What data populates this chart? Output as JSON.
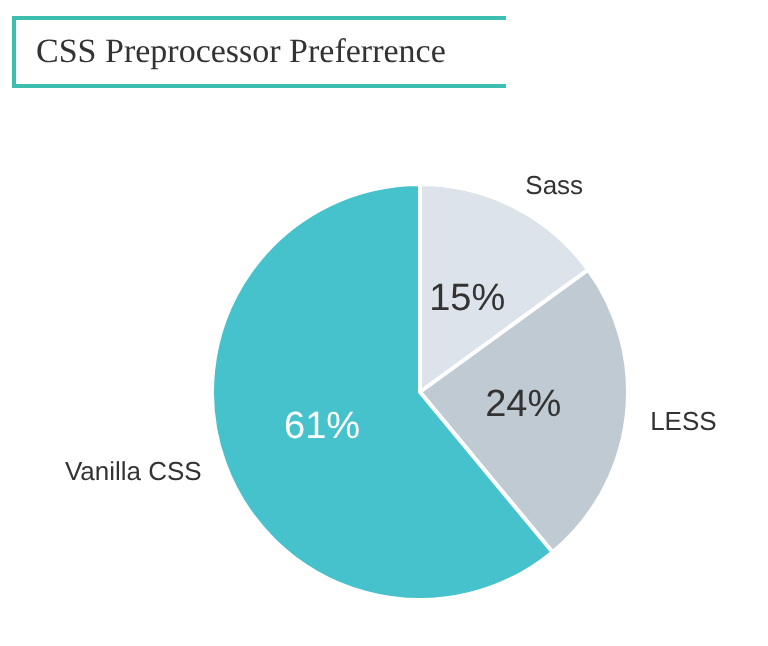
{
  "chart_data": {
    "type": "pie",
    "title": "CSS Preprocessor Preferrence",
    "categories": [
      "Sass",
      "LESS",
      "Vanilla CSS"
    ],
    "values": [
      15,
      24,
      61
    ],
    "colors": [
      "#dde3ea",
      "#bfcad3",
      "#45c2cc"
    ],
    "value_labels": [
      "15%",
      "24%",
      "61%"
    ]
  }
}
